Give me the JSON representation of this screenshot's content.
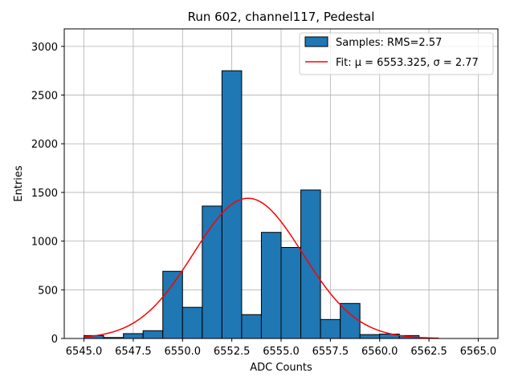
{
  "chart_data": {
    "type": "bar",
    "title": "Run 602, channel117, Pedestal",
    "xlabel": "ADC Counts",
    "ylabel": "Entries",
    "xlim": [
      6544.0,
      6566.0
    ],
    "ylim": [
      0,
      3180
    ],
    "xticks": [
      6545.0,
      6547.5,
      6550.0,
      6552.5,
      6555.0,
      6557.5,
      6560.0,
      6562.5,
      6565.0
    ],
    "xtick_labels": [
      "6545.0",
      "6547.5",
      "6550.0",
      "6552.5",
      "6555.0",
      "6557.5",
      "6560.0",
      "6562.5",
      "6565.0"
    ],
    "yticks": [
      0,
      500,
      1000,
      1500,
      2000,
      2500,
      3000
    ],
    "ytick_labels": [
      "0",
      "500",
      "1000",
      "1500",
      "2000",
      "2500",
      "3000"
    ],
    "grid": true,
    "bin_edges": [
      6545,
      6546,
      6547,
      6548,
      6549,
      6550,
      6551,
      6552,
      6553,
      6554,
      6555,
      6556,
      6557,
      6558,
      6559,
      6560,
      6561,
      6562,
      6563
    ],
    "values": [
      30,
      10,
      50,
      80,
      690,
      320,
      1360,
      2750,
      245,
      1090,
      935,
      1525,
      195,
      360,
      40,
      45,
      30,
      0
    ],
    "bar_color": "#1f77b4",
    "fit": {
      "mu": 6553.325,
      "sigma": 2.77,
      "amplitude": 1440,
      "x_range": [
        6545,
        6563
      ],
      "color": "#ff0000"
    },
    "legend": {
      "position": "top-right",
      "entries": [
        {
          "kind": "bar",
          "label": "Samples: RMS=2.57"
        },
        {
          "kind": "line",
          "label": "Fit: μ = 6553.325, σ = 2.77"
        }
      ]
    }
  }
}
